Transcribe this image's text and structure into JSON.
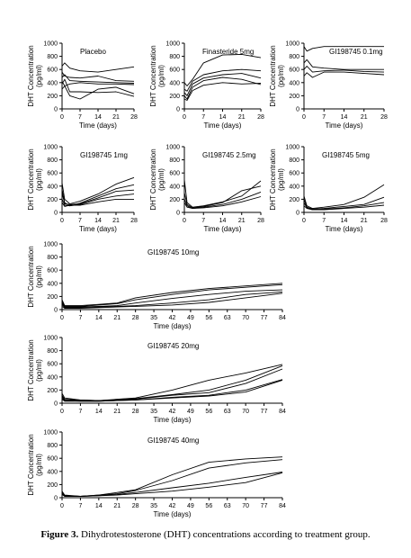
{
  "figure_caption": {
    "label": "Figure 3.",
    "text": "Dihydrotestosterone (DHT) concentrations according to treatment group."
  },
  "chart_data": [
    {
      "type": "line",
      "title": "Placebo",
      "ylabel": "DHT Concentration (pg/ml)",
      "xlabel": "Time (days)",
      "xlim": [
        0,
        28
      ],
      "ylim": [
        0,
        1000
      ],
      "xticks": [
        0,
        7,
        14,
        21,
        28
      ],
      "yticks": [
        0,
        200,
        400,
        600,
        800,
        1000
      ],
      "series": [
        {
          "x": [
            0,
            1,
            3,
            7,
            14,
            21,
            28
          ],
          "y": [
            650,
            700,
            620,
            580,
            560,
            600,
            640
          ]
        },
        {
          "x": [
            0,
            1,
            3,
            7,
            14,
            21,
            28
          ],
          "y": [
            560,
            500,
            480,
            470,
            500,
            430,
            420
          ]
        },
        {
          "x": [
            0,
            1,
            3,
            7,
            14,
            21,
            28
          ],
          "y": [
            480,
            520,
            430,
            420,
            410,
            400,
            390
          ]
        },
        {
          "x": [
            0,
            1,
            3,
            7,
            14,
            21,
            28
          ],
          "y": [
            420,
            350,
            380,
            400,
            380,
            380,
            370
          ]
        },
        {
          "x": [
            0,
            1,
            3,
            7,
            14,
            21,
            28
          ],
          "y": [
            380,
            450,
            260,
            260,
            250,
            260,
            190
          ]
        },
        {
          "x": [
            0,
            1,
            3,
            7,
            14,
            21,
            28
          ],
          "y": [
            300,
            350,
            200,
            150,
            300,
            330,
            230
          ]
        }
      ]
    },
    {
      "type": "line",
      "title": "Finasteride 5mg",
      "ylabel": "DHT Concentration (pg/ml)",
      "xlabel": "Time (days)",
      "xlim": [
        0,
        28
      ],
      "ylim": [
        0,
        1000
      ],
      "xticks": [
        0,
        7,
        14,
        21,
        28
      ],
      "yticks": [
        0,
        200,
        400,
        600,
        800,
        1000
      ],
      "series": [
        {
          "x": [
            0,
            1,
            3,
            7,
            14,
            21,
            28
          ],
          "y": [
            400,
            350,
            450,
            700,
            820,
            830,
            780
          ]
        },
        {
          "x": [
            0,
            1,
            3,
            7,
            14,
            21,
            28
          ],
          "y": [
            300,
            270,
            420,
            520,
            580,
            600,
            580
          ]
        },
        {
          "x": [
            0,
            1,
            3,
            7,
            14,
            21,
            28
          ],
          "y": [
            250,
            200,
            380,
            470,
            520,
            540,
            470
          ]
        },
        {
          "x": [
            0,
            1,
            3,
            7,
            14,
            21,
            28
          ],
          "y": [
            200,
            150,
            330,
            430,
            480,
            450,
            370
          ]
        },
        {
          "x": [
            0,
            1,
            3,
            7,
            14,
            21,
            28
          ],
          "y": [
            150,
            130,
            280,
            360,
            400,
            380,
            390
          ]
        }
      ]
    },
    {
      "type": "line",
      "title": "GI198745 0.1mg",
      "ylabel": "DHT Concentration (pg/ml)",
      "xlabel": "Time (days)",
      "xlim": [
        0,
        28
      ],
      "ylim": [
        0,
        1000
      ],
      "xticks": [
        0,
        7,
        14,
        21,
        28
      ],
      "yticks": [
        0,
        200,
        400,
        600,
        800,
        1000
      ],
      "series": [
        {
          "x": [
            0,
            1,
            3,
            7,
            14,
            21,
            28
          ],
          "y": [
            950,
            880,
            920,
            950,
            950,
            950,
            950
          ]
        },
        {
          "x": [
            0,
            1,
            3,
            7,
            14,
            21,
            28
          ],
          "y": [
            700,
            750,
            640,
            620,
            600,
            600,
            600
          ]
        },
        {
          "x": [
            0,
            1,
            3,
            7,
            14,
            21,
            28
          ],
          "y": [
            600,
            650,
            560,
            580,
            590,
            570,
            560
          ]
        },
        {
          "x": [
            0,
            1,
            3,
            7,
            14,
            21,
            28
          ],
          "y": [
            500,
            550,
            480,
            560,
            560,
            540,
            520
          ]
        }
      ]
    },
    {
      "type": "line",
      "title": "GI198745 1mg",
      "ylabel": "DHT Concentration (pg/ml)",
      "xlabel": "Time (days)",
      "xlim": [
        0,
        28
      ],
      "ylim": [
        0,
        1000
      ],
      "xticks": [
        0,
        7,
        14,
        21,
        28
      ],
      "yticks": [
        0,
        200,
        400,
        600,
        800,
        1000
      ],
      "series": [
        {
          "x": [
            0,
            1,
            3,
            7,
            14,
            21,
            28
          ],
          "y": [
            450,
            200,
            130,
            170,
            280,
            430,
            530
          ]
        },
        {
          "x": [
            0,
            1,
            3,
            7,
            14,
            21,
            28
          ],
          "y": [
            350,
            150,
            100,
            140,
            250,
            360,
            420
          ]
        },
        {
          "x": [
            0,
            1,
            3,
            7,
            14,
            21,
            28
          ],
          "y": [
            300,
            130,
            120,
            130,
            220,
            320,
            340
          ]
        },
        {
          "x": [
            0,
            1,
            3,
            7,
            14,
            21,
            28
          ],
          "y": [
            200,
            110,
            100,
            120,
            200,
            250,
            280
          ]
        },
        {
          "x": [
            0,
            1,
            3,
            7,
            14,
            21,
            28
          ],
          "y": [
            150,
            90,
            110,
            110,
            160,
            200,
            200
          ]
        }
      ]
    },
    {
      "type": "line",
      "title": "GI198745 2.5mg",
      "ylabel": "DHT Concentration (pg/ml)",
      "xlabel": "Time (days)",
      "xlim": [
        0,
        28
      ],
      "ylim": [
        0,
        1000
      ],
      "xticks": [
        0,
        7,
        14,
        21,
        28
      ],
      "yticks": [
        0,
        200,
        400,
        600,
        800,
        1000
      ],
      "series": [
        {
          "x": [
            0,
            1,
            3,
            7,
            14,
            21,
            28
          ],
          "y": [
            500,
            150,
            80,
            100,
            160,
            250,
            480
          ]
        },
        {
          "x": [
            0,
            1,
            3,
            7,
            14,
            21,
            28
          ],
          "y": [
            300,
            120,
            70,
            90,
            150,
            330,
            400
          ]
        },
        {
          "x": [
            0,
            1,
            3,
            7,
            14,
            21,
            28
          ],
          "y": [
            200,
            100,
            60,
            80,
            120,
            200,
            310
          ]
        },
        {
          "x": [
            0,
            1,
            3,
            7,
            14,
            21,
            28
          ],
          "y": [
            150,
            80,
            60,
            70,
            100,
            160,
            240
          ]
        }
      ]
    },
    {
      "type": "line",
      "title": "GI198745 5mg",
      "ylabel": "DHT Concentration (pg/ml)",
      "xlabel": "Time (days)",
      "xlim": [
        0,
        28
      ],
      "ylim": [
        0,
        1000
      ],
      "xticks": [
        0,
        7,
        14,
        21,
        28
      ],
      "yticks": [
        0,
        200,
        400,
        600,
        800,
        1000
      ],
      "series": [
        {
          "x": [
            0,
            1,
            3,
            7,
            14,
            21,
            28
          ],
          "y": [
            250,
            100,
            60,
            80,
            120,
            230,
            420
          ]
        },
        {
          "x": [
            0,
            1,
            3,
            7,
            14,
            21,
            28
          ],
          "y": [
            200,
            80,
            50,
            60,
            90,
            120,
            230
          ]
        },
        {
          "x": [
            0,
            1,
            3,
            7,
            14,
            21,
            28
          ],
          "y": [
            150,
            70,
            40,
            50,
            70,
            100,
            150
          ]
        },
        {
          "x": [
            0,
            1,
            3,
            7,
            14,
            21,
            28
          ],
          "y": [
            100,
            60,
            40,
            40,
            60,
            80,
            110
          ]
        }
      ]
    },
    {
      "type": "line",
      "title": "GI198745 10mg",
      "ylabel": "DHT Concentration (pg/ml)",
      "xlabel": "Time (days)",
      "xlim": [
        0,
        84
      ],
      "ylim": [
        0,
        1000
      ],
      "xticks": [
        0,
        7,
        14,
        21,
        28,
        35,
        42,
        49,
        56,
        63,
        70,
        77,
        84
      ],
      "yticks": [
        0,
        200,
        400,
        600,
        800,
        1000
      ],
      "series": [
        {
          "x": [
            0,
            1,
            7,
            14,
            21,
            28,
            42,
            56,
            70,
            84
          ],
          "y": [
            150,
            60,
            60,
            80,
            100,
            180,
            260,
            320,
            360,
            400
          ]
        },
        {
          "x": [
            0,
            1,
            7,
            14,
            21,
            28,
            42,
            56,
            70,
            84
          ],
          "y": [
            120,
            50,
            50,
            70,
            90,
            150,
            230,
            300,
            340,
            380
          ]
        },
        {
          "x": [
            0,
            1,
            7,
            14,
            21,
            28,
            42,
            56,
            70,
            84
          ],
          "y": [
            100,
            40,
            40,
            50,
            60,
            100,
            170,
            230,
            280,
            300
          ]
        },
        {
          "x": [
            0,
            1,
            7,
            14,
            21,
            28,
            42,
            56,
            70,
            84
          ],
          "y": [
            80,
            30,
            30,
            40,
            50,
            60,
            100,
            150,
            230,
            270
          ]
        },
        {
          "x": [
            0,
            1,
            7,
            14,
            21,
            28,
            42,
            56,
            70,
            84
          ],
          "y": [
            50,
            20,
            20,
            30,
            40,
            50,
            70,
            110,
            180,
            250
          ]
        }
      ]
    },
    {
      "type": "line",
      "title": "GI198745 20mg",
      "ylabel": "DHT Concentration (pg/ml)",
      "xlabel": "Time (days)",
      "xlim": [
        0,
        84
      ],
      "ylim": [
        0,
        1000
      ],
      "xticks": [
        0,
        7,
        14,
        21,
        28,
        35,
        42,
        49,
        56,
        63,
        70,
        77,
        84
      ],
      "yticks": [
        0,
        200,
        400,
        600,
        800,
        1000
      ],
      "series": [
        {
          "x": [
            0,
            1,
            7,
            14,
            21,
            28,
            42,
            56,
            70,
            84
          ],
          "y": [
            150,
            80,
            50,
            40,
            60,
            80,
            200,
            350,
            460,
            590
          ]
        },
        {
          "x": [
            0,
            1,
            7,
            14,
            21,
            28,
            42,
            56,
            70,
            84
          ],
          "y": [
            120,
            60,
            50,
            40,
            50,
            70,
            130,
            200,
            350,
            570
          ]
        },
        {
          "x": [
            0,
            1,
            7,
            14,
            21,
            28,
            42,
            56,
            70,
            84
          ],
          "y": [
            100,
            50,
            40,
            40,
            50,
            60,
            120,
            160,
            300,
            520
          ]
        },
        {
          "x": [
            0,
            1,
            7,
            14,
            21,
            28,
            42,
            56,
            70,
            84
          ],
          "y": [
            80,
            40,
            30,
            30,
            40,
            50,
            90,
            120,
            200,
            360
          ]
        },
        {
          "x": [
            0,
            1,
            7,
            14,
            21,
            28,
            42,
            56,
            70,
            84
          ],
          "y": [
            60,
            30,
            30,
            30,
            40,
            50,
            80,
            110,
            170,
            350
          ]
        }
      ]
    },
    {
      "type": "line",
      "title": "GI198745 40mg",
      "ylabel": "DHT Concentration (pg/ml)",
      "xlabel": "Time (days)",
      "xlim": [
        0,
        84
      ],
      "ylim": [
        0,
        1000
      ],
      "xticks": [
        0,
        7,
        14,
        21,
        28,
        35,
        42,
        49,
        56,
        63,
        70,
        77,
        84
      ],
      "yticks": [
        0,
        200,
        400,
        600,
        800,
        1000
      ],
      "series": [
        {
          "x": [
            0,
            1,
            7,
            14,
            21,
            28,
            42,
            56,
            70,
            84
          ],
          "y": [
            100,
            40,
            20,
            40,
            80,
            120,
            350,
            540,
            590,
            620
          ]
        },
        {
          "x": [
            0,
            1,
            7,
            14,
            21,
            28,
            42,
            56,
            70,
            84
          ],
          "y": [
            80,
            30,
            20,
            40,
            60,
            110,
            260,
            450,
            530,
            580
          ]
        },
        {
          "x": [
            0,
            1,
            7,
            14,
            21,
            28,
            42,
            56,
            70,
            84
          ],
          "y": [
            60,
            30,
            20,
            30,
            50,
            80,
            150,
            220,
            310,
            390
          ]
        },
        {
          "x": [
            0,
            1,
            7,
            14,
            21,
            28,
            42,
            56,
            70,
            84
          ],
          "y": [
            50,
            20,
            20,
            30,
            40,
            60,
            100,
            160,
            230,
            380
          ]
        }
      ]
    }
  ]
}
